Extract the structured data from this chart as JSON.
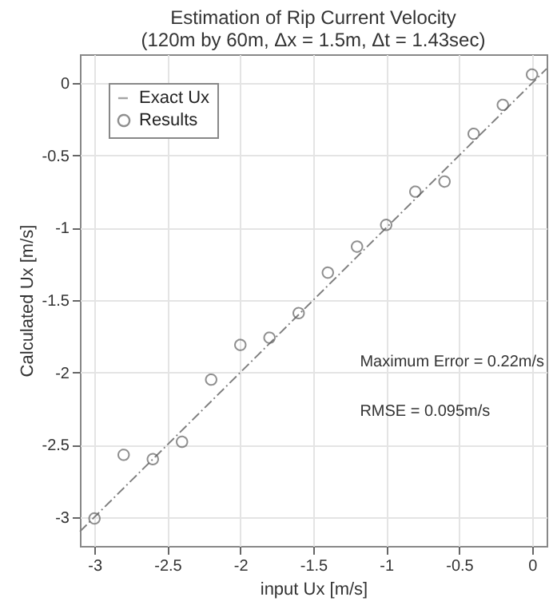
{
  "chart_data": {
    "type": "scatter",
    "title": "Estimation of Rip Current Velocity",
    "subtitle": "(120m by 60m, Δx = 1.5m, Δt = 1.43sec)",
    "xlabel": "input Ux [m/s]",
    "ylabel": "Calculated Ux [m/s]",
    "series": [
      {
        "name": "Exact Ux",
        "type": "line",
        "color": "#808080",
        "line_style": "dashed",
        "marker": "none",
        "x": [
          -3.1,
          0.1
        ],
        "values": [
          -3.1,
          0.1
        ]
      },
      {
        "name": "Results",
        "type": "scatter",
        "color": "#606060",
        "marker": "circle",
        "x": [
          -3,
          -2.8,
          -2.6,
          -2.4,
          -2.2,
          -2,
          -1.8,
          -1.6,
          -1.4,
          -1.2,
          -1,
          -0.8,
          -0.6,
          -0.4,
          -0.2,
          0
        ],
        "values": [
          -3.01,
          -2.57,
          -2.6,
          -2.48,
          -2.05,
          -1.81,
          -1.76,
          -1.59,
          -1.31,
          -1.13,
          -0.98,
          -0.75,
          -0.68,
          -0.35,
          -0.15,
          0.06
        ]
      }
    ],
    "xlim": [
      -3.1,
      0.1
    ],
    "xticks": [
      -3,
      -2.5,
      -2,
      -1.5,
      -1,
      -0.5,
      0
    ],
    "ylim": [
      -3.2,
      0.2
    ],
    "yticks": [
      -3,
      -2.5,
      -2,
      -1.5,
      -1,
      -0.5,
      0
    ],
    "grid": true,
    "legend": "top left",
    "annotations": [
      "Maximum Error = 0.22m/s",
      "RMSE = 0.095m/s"
    ]
  }
}
